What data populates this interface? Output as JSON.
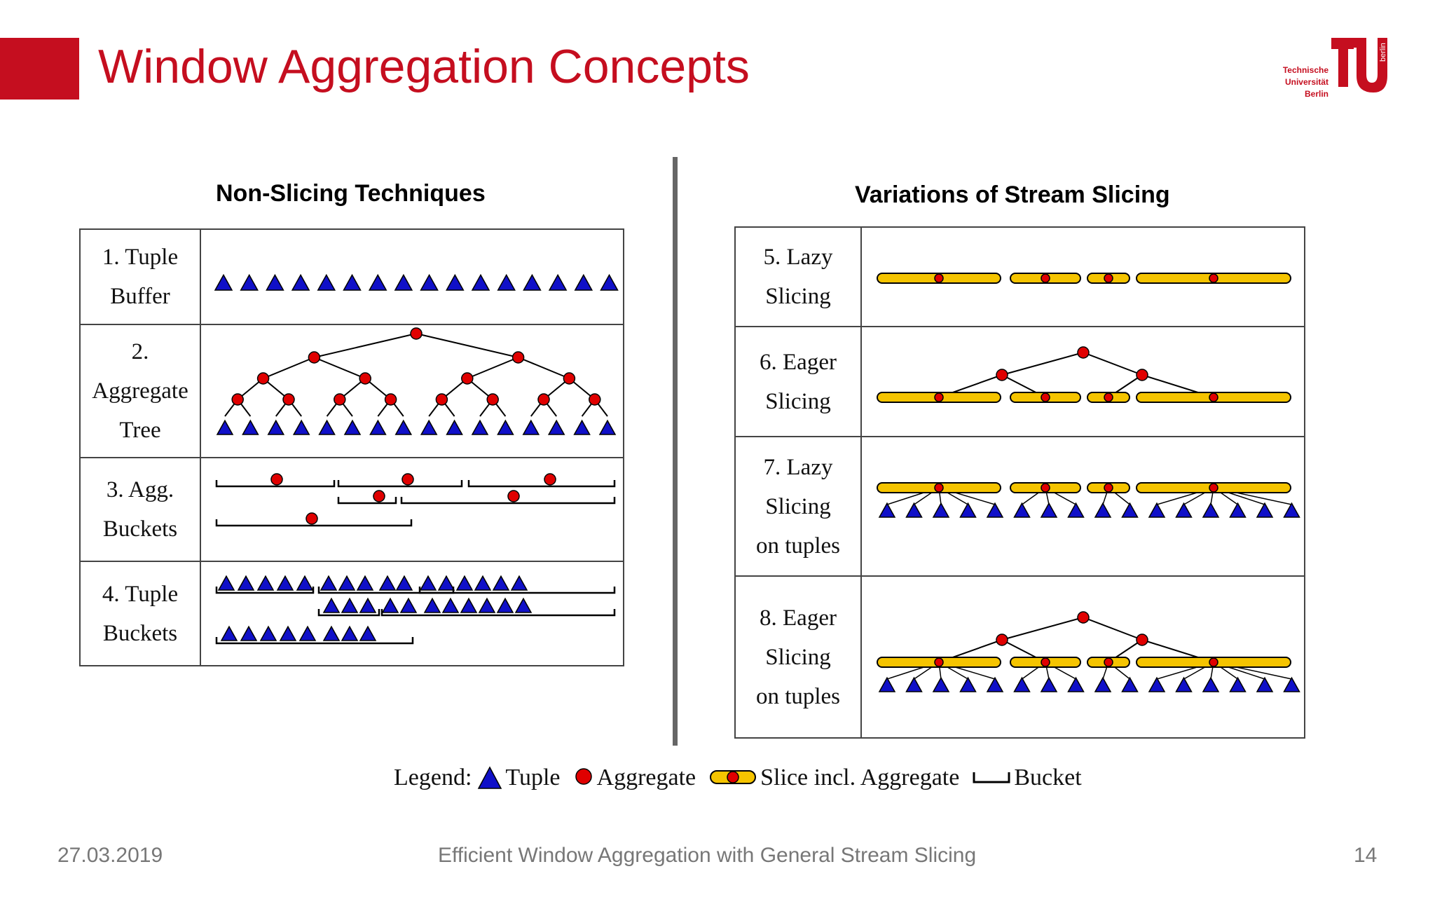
{
  "header": {
    "title": "Window Aggregation Concepts",
    "logo_lines": [
      "Technische",
      "Universität",
      "Berlin"
    ],
    "logo_side_text": "berlin",
    "accent_color": "#c50e1f"
  },
  "left": {
    "heading": "Non-Slicing Techniques",
    "rows": [
      {
        "label": [
          "1. Tuple",
          "Buffer"
        ]
      },
      {
        "label": [
          "2.",
          "Aggregate",
          "Tree"
        ]
      },
      {
        "label": [
          "3. Agg.",
          "Buckets"
        ]
      },
      {
        "label": [
          "4. Tuple",
          "Buckets"
        ]
      }
    ]
  },
  "right": {
    "heading": "Variations of Stream Slicing",
    "rows": [
      {
        "label": [
          "5. Lazy",
          "Slicing"
        ]
      },
      {
        "label": [
          "6. Eager",
          "Slicing"
        ]
      },
      {
        "label": [
          "7. Lazy",
          "Slicing",
          "on tuples"
        ]
      },
      {
        "label": [
          "8. Eager",
          "Slicing",
          "on tuples"
        ]
      }
    ]
  },
  "legend": {
    "prefix": "Legend:",
    "tuple": "Tuple",
    "aggregate": "Aggregate",
    "slice": "Slice incl. Aggregate",
    "bucket": "Bucket"
  },
  "colors": {
    "tuple": "#1010c8",
    "aggregate": "#e00000",
    "slice": "#f5c400"
  },
  "footer": {
    "date": "27.03.2019",
    "talk_title": "Efficient Window Aggregation with General Stream Slicing",
    "page": "14"
  }
}
